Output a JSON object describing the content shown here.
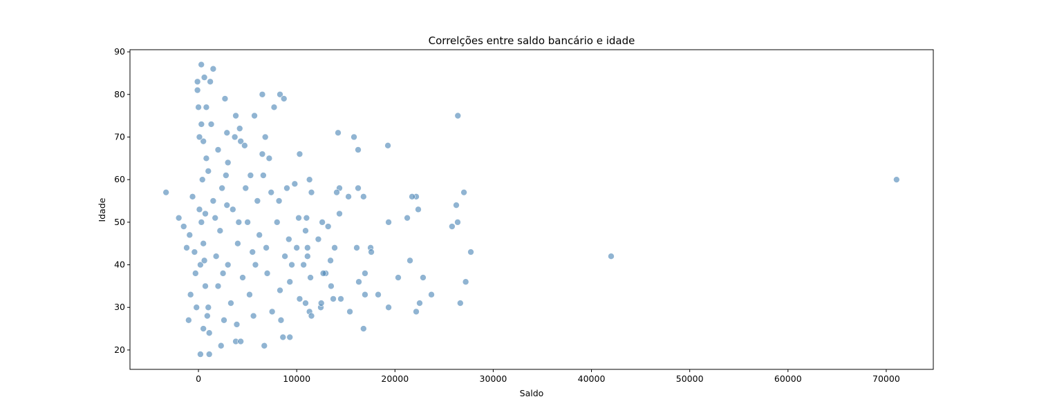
{
  "chart_data": {
    "type": "scatter",
    "title": "Correlções entre saldo bancário e idade",
    "x_label": "Saldo",
    "y_label": "Idade",
    "color": "#4682b4",
    "x": [
      71050,
      42000,
      -3300,
      -2000,
      27720,
      27200,
      26650,
      27020,
      26240,
      26380,
      25810,
      23710,
      22860,
      22510,
      22160,
      22370,
      22160,
      21740,
      21530,
      21250,
      20330,
      19350,
      19280,
      19350,
      18290,
      16950,
      16800,
      16950,
      16800,
      16250,
      16110,
      16320,
      16250,
      15830,
      17520,
      17590,
      15410,
      15270,
      14210,
      14350,
      14070,
      14350,
      14490,
      13720,
      13860,
      13440,
      12950,
      12450,
      26400,
      290,
      1500,
      600,
      -100,
      1200,
      8300,
      6500,
      2700,
      8700,
      -100,
      7700,
      5700,
      0,
      800,
      3800,
      4200,
      1300,
      2900,
      6800,
      10300,
      3700,
      4300,
      500,
      100,
      5300,
      6600,
      2800,
      9000,
      9800,
      11300,
      11500,
      7400,
      8200,
      10200,
      11000,
      12600,
      13200,
      12200,
      10900,
      11100,
      11100,
      10700,
      11400,
      10300,
      10900,
      11300,
      11500,
      12500,
      13500,
      12700,
      9300,
      8600,
      9300,
      8400,
      6700,
      1100,
      200,
      3800,
      4300,
      2300,
      500,
      1000,
      2000,
      3000,
      4000,
      5000,
      6000,
      -1000,
      -800,
      -1200,
      -1500,
      -600,
      -900,
      200,
      300,
      400,
      500,
      700,
      900,
      1500,
      1800,
      2200,
      2500,
      3300,
      3500,
      4500,
      5200,
      5500,
      6200,
      7000,
      7500,
      8000,
      8800,
      9200,
      7200,
      6500,
      4700,
      3000,
      2000,
      1000,
      100,
      600,
      1100,
      2600,
      3900,
      5600,
      4800,
      2400,
      1700,
      800,
      300,
      -300,
      -400,
      -200,
      700,
      2900,
      4100,
      5800,
      6900,
      8300,
      9500,
      10000
    ],
    "y": [
      60,
      42,
      57,
      51,
      43,
      36,
      31,
      57,
      54,
      50,
      49,
      33,
      37,
      31,
      29,
      53,
      56,
      56,
      41,
      51,
      37,
      50,
      68,
      30,
      33,
      38,
      25,
      33,
      56,
      58,
      44,
      36,
      67,
      70,
      44,
      43,
      29,
      56,
      71,
      58,
      57,
      52,
      32,
      32,
      44,
      41,
      38,
      30,
      75,
      87,
      86,
      84,
      83,
      83,
      80,
      80,
      79,
      79,
      81,
      77,
      75,
      77,
      77,
      75,
      72,
      73,
      71,
      70,
      66,
      70,
      69,
      69,
      70,
      61,
      61,
      61,
      58,
      59,
      60,
      57,
      57,
      55,
      51,
      51,
      50,
      49,
      46,
      48,
      44,
      42,
      40,
      37,
      32,
      31,
      29,
      28,
      31,
      35,
      38,
      36,
      23,
      23,
      27,
      21,
      19,
      19,
      22,
      22,
      21,
      25,
      30,
      35,
      40,
      45,
      50,
      55,
      27,
      33,
      44,
      49,
      56,
      47,
      40,
      50,
      60,
      45,
      35,
      28,
      55,
      42,
      48,
      38,
      31,
      53,
      37,
      33,
      43,
      47,
      38,
      29,
      50,
      42,
      46,
      65,
      66,
      68,
      64,
      67,
      62,
      53,
      41,
      24,
      27,
      26,
      28,
      58,
      58,
      51,
      65,
      73,
      38,
      43,
      30,
      52,
      54,
      50,
      40,
      44,
      34,
      40,
      44
    ],
    "xlim": [
      -6970,
      74790
    ],
    "ylim": [
      15.45,
      90.5
    ],
    "xticks": [
      0,
      10000,
      20000,
      30000,
      40000,
      50000,
      60000,
      70000
    ],
    "yticks": [
      20,
      30,
      40,
      50,
      60,
      70,
      80,
      90
    ]
  }
}
